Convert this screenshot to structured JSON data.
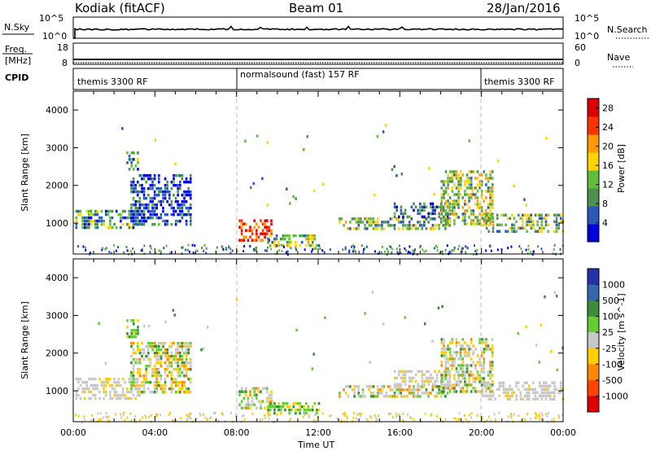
{
  "header": {
    "station": "Kodiak (fitACF)",
    "beam": "Beam 01",
    "date": "28/Jan/2016"
  },
  "noise_panel": {
    "left_label": "N.Sky",
    "right_label": "N.Search",
    "left_ticks": [
      "10^5",
      "10^0"
    ],
    "right_ticks": [
      "10^5",
      "10^0"
    ]
  },
  "freq_panel": {
    "left_label_1": "Freq.",
    "left_label_2": "[MHz]",
    "right_label": "Nave",
    "left_ticks": [
      "18",
      "8"
    ],
    "right_ticks": [
      "60",
      "0"
    ]
  },
  "cpid_panel": {
    "label": "CPID",
    "segments": [
      {
        "name": "themis 3300 RF",
        "start_hour": 0,
        "end_hour": 8
      },
      {
        "name": "normalsound (fast) 157 RF",
        "start_hour": 8,
        "end_hour": 20
      },
      {
        "name": "themis 3300 RF",
        "start_hour": 20,
        "end_hour": 24
      }
    ]
  },
  "chart_data": [
    {
      "type": "heatmap",
      "title": "",
      "ylabel": "Slant Range [km]",
      "xlabel": "",
      "y_ticks": [
        1000,
        2000,
        3000,
        4000
      ],
      "ylim": [
        180,
        4500
      ],
      "xlim_hours": [
        0,
        24
      ],
      "colorbar": {
        "label": "Power [dB]",
        "ticks": [
          4,
          8,
          12,
          16,
          20,
          24,
          28
        ],
        "range": [
          0,
          30
        ],
        "colors": [
          "#0000dd",
          "#2a58b8",
          "#4f8f4f",
          "#5fbf3a",
          "#ffd400",
          "#ff9900",
          "#ff3300",
          "#dd0000"
        ]
      },
      "echo_regions": [
        {
          "t": [
            0.1,
            3.3
          ],
          "r": [
            850,
            1350
          ],
          "level": 0.3
        },
        {
          "t": [
            2.8,
            5.8
          ],
          "r": [
            1000,
            2300
          ],
          "level": 0.15
        },
        {
          "t": [
            2.6,
            3.2
          ],
          "r": [
            2400,
            2900
          ],
          "level": 0.35
        },
        {
          "t": [
            8.1,
            9.7
          ],
          "r": [
            500,
            1100
          ],
          "level": 0.9
        },
        {
          "t": [
            9.5,
            12.0
          ],
          "r": [
            400,
            700
          ],
          "level": 0.45
        },
        {
          "t": [
            13.0,
            18.4
          ],
          "r": [
            850,
            1150
          ],
          "level": 0.4
        },
        {
          "t": [
            15.7,
            18.4
          ],
          "r": [
            1150,
            1550
          ],
          "level": 0.25
        },
        {
          "t": [
            18.0,
            20.5
          ],
          "r": [
            1000,
            2400
          ],
          "level": 0.45
        },
        {
          "t": [
            20.0,
            24.0
          ],
          "r": [
            750,
            1250
          ],
          "level": 0.4
        }
      ]
    },
    {
      "type": "heatmap",
      "title": "",
      "ylabel": "Slant Range [km]",
      "xlabel": "Time UT",
      "x_ticks": [
        "00:00",
        "04:00",
        "08:00",
        "12:00",
        "16:00",
        "20:00",
        "00:00"
      ],
      "y_ticks": [
        1000,
        2000,
        3000,
        4000
      ],
      "ylim": [
        180,
        4500
      ],
      "xlim_hours": [
        0,
        24
      ],
      "colorbar": {
        "label": "Velocity [m s^-1]",
        "ticks": [
          1000,
          500,
          100,
          25,
          -25,
          -100,
          -500,
          -1000
        ],
        "colors": [
          "#2233aa",
          "#3366aa",
          "#3c8c3c",
          "#66cc33",
          "#c8c8c8",
          "#ffcc00",
          "#ff8800",
          "#ff4400",
          "#dd0000"
        ]
      },
      "echo_regions": [
        {
          "t": [
            0.1,
            3.3
          ],
          "r": [
            800,
            1350
          ],
          "level": "ground-scatter"
        },
        {
          "t": [
            2.8,
            5.8
          ],
          "r": [
            1000,
            2300
          ],
          "level": "mixed"
        },
        {
          "t": [
            2.6,
            3.2
          ],
          "r": [
            2400,
            2900
          ],
          "level": "positive"
        },
        {
          "t": [
            8.1,
            9.7
          ],
          "r": [
            500,
            1100
          ],
          "level": "mixed"
        },
        {
          "t": [
            9.5,
            12.0
          ],
          "r": [
            400,
            700
          ],
          "level": "positive"
        },
        {
          "t": [
            13.0,
            18.4
          ],
          "r": [
            850,
            1150
          ],
          "level": "mixed"
        },
        {
          "t": [
            15.7,
            18.4
          ],
          "r": [
            1150,
            1550
          ],
          "level": "ground-scatter"
        },
        {
          "t": [
            18.0,
            20.5
          ],
          "r": [
            1000,
            2400
          ],
          "level": "mixed"
        },
        {
          "t": [
            20.0,
            24.0
          ],
          "r": [
            750,
            1250
          ],
          "level": "ground-scatter"
        }
      ]
    }
  ]
}
